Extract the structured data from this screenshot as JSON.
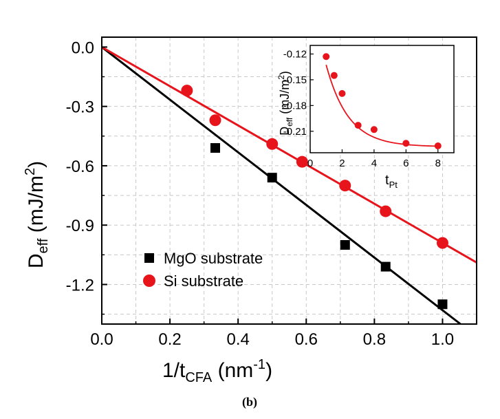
{
  "caption": "(b)",
  "chart_data": [
    {
      "id": "main",
      "type": "scatter",
      "title": "",
      "xlabel": {
        "main": "1/t",
        "sub": "CFA",
        "unit_open": " (nm",
        "sup": "-1",
        "unit_close": ")"
      },
      "ylabel": {
        "main": "D",
        "sub": "eff",
        "unit_open": " (mJ/m",
        "sup": "2",
        "unit_close": ")"
      },
      "xlim": [
        0.0,
        1.1
      ],
      "ylim": [
        -1.4,
        0.05
      ],
      "xticks": [
        {
          "v": 0.0,
          "label": "0.0"
        },
        {
          "v": 0.2,
          "label": "0.2"
        },
        {
          "v": 0.4,
          "label": "0.4"
        },
        {
          "v": 0.6,
          "label": "0.6"
        },
        {
          "v": 0.8,
          "label": "0.8"
        },
        {
          "v": 1.0,
          "label": "1.0"
        }
      ],
      "yticks": [
        {
          "v": 0.0,
          "label": "0.0"
        },
        {
          "v": -0.3,
          "label": "-0.3"
        },
        {
          "v": -0.6,
          "label": "-0.6"
        },
        {
          "v": -0.9,
          "label": "-0.9"
        },
        {
          "v": -1.2,
          "label": "-1.2"
        }
      ],
      "grid": true,
      "legend_position": "lower-left",
      "series": [
        {
          "name": "MgO substrate",
          "marker": "square",
          "color": "#000000",
          "x": [
            0.333,
            0.5,
            0.714,
            0.833,
            1.0
          ],
          "y": [
            -0.51,
            -0.66,
            -1.0,
            -1.11,
            -1.3
          ],
          "fit": {
            "slope": -1.33,
            "intercept": 0.0,
            "x_range": [
              0.0,
              1.053
            ]
          }
        },
        {
          "name": "Si substrate",
          "marker": "circle",
          "color": "#e8141c",
          "x": [
            0.25,
            0.333,
            0.5,
            0.588,
            0.714,
            0.833,
            1.0
          ],
          "y": [
            -0.22,
            -0.37,
            -0.49,
            -0.58,
            -0.7,
            -0.83,
            -0.99
          ],
          "fit": {
            "slope": -0.99,
            "intercept": 0.0,
            "x_range": [
              0.0,
              1.1
            ]
          }
        }
      ]
    },
    {
      "id": "inset",
      "type": "scatter",
      "title": "",
      "xlabel": {
        "main": "t",
        "sub": "Pt"
      },
      "ylabel": {
        "main": "D",
        "sub": "eff",
        "unit_open": " (mJ/m",
        "sup": "2",
        "unit_close": ")"
      },
      "xlim": [
        0,
        9
      ],
      "ylim": [
        -0.235,
        -0.11
      ],
      "xticks": [
        {
          "v": 0,
          "label": "0"
        },
        {
          "v": 2,
          "label": "2"
        },
        {
          "v": 4,
          "label": "4"
        },
        {
          "v": 6,
          "label": "6"
        },
        {
          "v": 8,
          "label": "8"
        }
      ],
      "yticks": [
        {
          "v": -0.12,
          "label": "-0.12"
        },
        {
          "v": -0.15,
          "label": "-0.15"
        },
        {
          "v": -0.18,
          "label": "-0.18"
        },
        {
          "v": -0.21,
          "label": "-0.21"
        }
      ],
      "grid": false,
      "series": [
        {
          "name": "Si substrate",
          "marker": "circle",
          "color": "#e8141c",
          "x": [
            1,
            1.5,
            2,
            3,
            4,
            6,
            8
          ],
          "y": [
            -0.123,
            -0.145,
            -0.166,
            -0.203,
            -0.208,
            -0.224,
            -0.227
          ],
          "fit": {
            "type": "exponential",
            "a": -0.228,
            "b": 0.196,
            "c": 0.72,
            "x_range": [
              1,
              8
            ]
          }
        }
      ]
    }
  ]
}
